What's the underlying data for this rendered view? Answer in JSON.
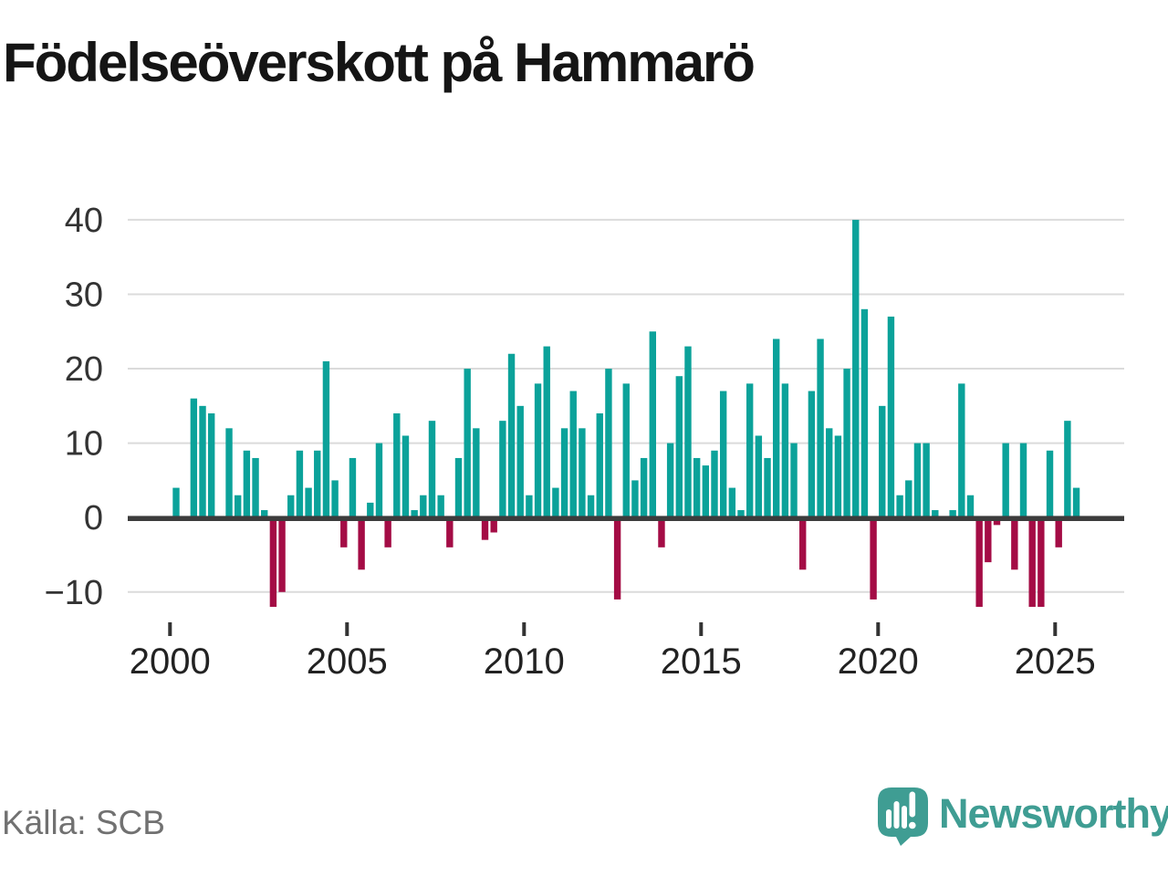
{
  "title": "Födelseöverskott på Hammarö",
  "source": "Källa: SCB",
  "logo": {
    "text": "Newsworthy"
  },
  "colors": {
    "positive_bar": "#0ba29a",
    "negative_bar": "#a40c45",
    "gridline": "#dbdbdb",
    "zero_line": "#3c3c3c",
    "axis_label": "#333333",
    "title_text": "#151515",
    "source_text": "#717171",
    "logo_teal": "#3f9d93"
  },
  "chart_data": {
    "type": "bar",
    "title": "Födelseöverskott på Hammarö",
    "unit": "quarter",
    "start": "2000Q1",
    "end": "2025Q3",
    "grid": "horizontal",
    "legend": "none",
    "ylim": [
      -13.5,
      41
    ],
    "y_ticks": [
      40,
      30,
      20,
      10,
      0,
      -10
    ],
    "y_tick_labels": [
      "40",
      "30",
      "20",
      "10",
      "0",
      "−10"
    ],
    "x_tick_labels": [
      "2000",
      "2005",
      "2010",
      "2015",
      "2020",
      "2025"
    ],
    "values_by_year": {
      "2000": [
        4,
        0,
        16,
        15
      ],
      "2001": [
        14,
        0,
        12,
        3
      ],
      "2002": [
        9,
        8,
        1,
        -12
      ],
      "2003": [
        -10,
        3,
        9,
        4
      ],
      "2004": [
        9,
        21,
        5,
        -4
      ],
      "2005": [
        8,
        -7,
        2,
        10
      ],
      "2006": [
        -4,
        14,
        11,
        1
      ],
      "2007": [
        3,
        13,
        3,
        -4
      ],
      "2008": [
        8,
        20,
        12,
        -3
      ],
      "2009": [
        -2,
        13,
        22,
        15
      ],
      "2010": [
        3,
        18,
        23,
        4
      ],
      "2011": [
        12,
        17,
        12,
        3
      ],
      "2012": [
        14,
        20,
        -11,
        18
      ],
      "2013": [
        5,
        8,
        25,
        -4
      ],
      "2014": [
        10,
        19,
        23,
        8
      ],
      "2015": [
        7,
        9,
        17,
        4
      ],
      "2016": [
        1,
        18,
        11,
        8
      ],
      "2017": [
        24,
        18,
        10,
        -7
      ],
      "2018": [
        17,
        24,
        12,
        11
      ],
      "2019": [
        20,
        40,
        28,
        -11
      ],
      "2020": [
        15,
        27,
        3,
        5
      ],
      "2021": [
        10,
        10,
        1,
        0
      ],
      "2022": [
        1,
        18,
        3,
        -12
      ],
      "2023": [
        -6,
        -1,
        10,
        -7
      ],
      "2024": [
        10,
        -12,
        -12,
        9
      ],
      "2025": [
        -4,
        13,
        4
      ]
    }
  }
}
